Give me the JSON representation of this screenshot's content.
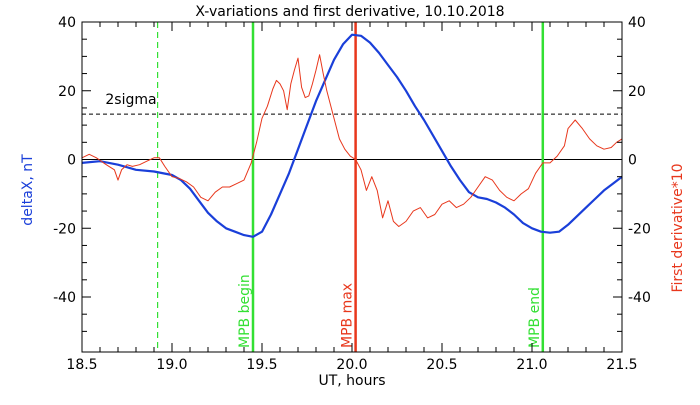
{
  "chart_data": {
    "type": "line",
    "title": "X-variations and first derivative, 10.10.2018",
    "xlabel": "UT, hours",
    "ylabel_left": "deltaX, nT",
    "ylabel_right": "First derivative*10",
    "xlim": [
      18.5,
      21.5
    ],
    "ylim": [
      -56,
      40
    ],
    "xticks": [
      18.5,
      19.0,
      19.5,
      20.0,
      20.5,
      21.0,
      21.5
    ],
    "xtick_labels": [
      "18.5",
      "19.0",
      "19.5",
      "20.0",
      "20.5",
      "21.0",
      "21.5"
    ],
    "yticks": [
      -40,
      -20,
      0,
      20,
      40
    ],
    "ytick_labels": [
      "-40",
      "-20",
      "0",
      "20",
      "40"
    ],
    "colors": {
      "deltaX": "#1a3fd9",
      "derivative": "#e8371c",
      "mpb_boundary": "#33e033",
      "mpb_max": "#e8371c",
      "axis": "#000000",
      "ref_line": "#000000"
    },
    "reference_lines": [
      {
        "label": "2sigma",
        "y": 13.2,
        "style": "dashed"
      },
      {
        "label": "",
        "y": 0,
        "style": "solid"
      }
    ],
    "vertical_lines": [
      {
        "x": 18.92,
        "label": "",
        "color": "#33e033",
        "style": "dashed"
      },
      {
        "x": 19.45,
        "label": "MPB begin",
        "color": "#33e033",
        "style": "solid"
      },
      {
        "x": 20.02,
        "label": "MPB max",
        "color": "#e8371c",
        "style": "solid"
      },
      {
        "x": 21.06,
        "label": "MPB end",
        "color": "#33e033",
        "style": "solid"
      }
    ],
    "series": [
      {
        "key": "deltaX",
        "x": [
          18.5,
          18.6,
          18.7,
          18.8,
          18.9,
          19.0,
          19.05,
          19.1,
          19.15,
          19.2,
          19.25,
          19.3,
          19.35,
          19.4,
          19.45,
          19.5,
          19.55,
          19.6,
          19.65,
          19.7,
          19.75,
          19.8,
          19.85,
          19.9,
          19.95,
          20.0,
          20.05,
          20.1,
          20.15,
          20.2,
          20.25,
          20.3,
          20.35,
          20.4,
          20.45,
          20.5,
          20.55,
          20.6,
          20.65,
          20.7,
          20.75,
          20.8,
          20.85,
          20.9,
          20.95,
          21.0,
          21.05,
          21.1,
          21.15,
          21.2,
          21.25,
          21.3,
          21.35,
          21.4,
          21.45,
          21.5
        ],
        "values": [
          -1.0,
          -0.5,
          -1.5,
          -3.0,
          -3.5,
          -4.5,
          -6.0,
          -8.5,
          -12.0,
          -15.5,
          -18.0,
          -20.0,
          -21.0,
          -22.0,
          -22.5,
          -21.0,
          -16.0,
          -10.0,
          -4.0,
          3.0,
          10.0,
          17.0,
          23.0,
          29.0,
          33.5,
          36.3,
          36.0,
          34.0,
          31.0,
          27.5,
          24.0,
          20.0,
          15.5,
          11.5,
          7.0,
          2.5,
          -2.0,
          -6.0,
          -9.5,
          -11.0,
          -11.5,
          -12.5,
          -14.0,
          -16.0,
          -18.5,
          -20.0,
          -21.0,
          -21.3,
          -21.0,
          -19.0,
          -16.5,
          -14.0,
          -11.5,
          -9.0,
          -7.0,
          -5.0
        ]
      },
      {
        "key": "derivative",
        "x": [
          18.5,
          18.54,
          18.58,
          18.62,
          18.65,
          18.68,
          18.7,
          18.72,
          18.75,
          18.78,
          18.82,
          18.86,
          18.9,
          18.93,
          18.96,
          19.0,
          19.04,
          19.08,
          19.12,
          19.16,
          19.2,
          19.24,
          19.28,
          19.32,
          19.36,
          19.4,
          19.44,
          19.47,
          19.5,
          19.53,
          19.56,
          19.58,
          19.6,
          19.62,
          19.64,
          19.66,
          19.68,
          19.7,
          19.72,
          19.74,
          19.76,
          19.78,
          19.8,
          19.82,
          19.84,
          19.86,
          19.88,
          19.9,
          19.93,
          19.96,
          19.99,
          20.02,
          20.05,
          20.08,
          20.11,
          20.14,
          20.17,
          20.2,
          20.23,
          20.26,
          20.3,
          20.34,
          20.38,
          20.42,
          20.46,
          20.5,
          20.54,
          20.58,
          20.62,
          20.66,
          20.7,
          20.74,
          20.78,
          20.82,
          20.86,
          20.9,
          20.94,
          20.98,
          21.02,
          21.06,
          21.1,
          21.14,
          21.18,
          21.2,
          21.24,
          21.28,
          21.32,
          21.36,
          21.4,
          21.44,
          21.47,
          21.5
        ],
        "values": [
          0.5,
          1.5,
          0.5,
          -1.0,
          -2.0,
          -3.0,
          -6.0,
          -3.0,
          -1.5,
          -2.0,
          -1.5,
          -0.5,
          0.5,
          0.5,
          -2.0,
          -5.0,
          -5.5,
          -6.5,
          -8.0,
          -11.0,
          -12.0,
          -9.5,
          -8.0,
          -8.0,
          -7.0,
          -6.0,
          -1.0,
          5.0,
          12.0,
          15.5,
          20.5,
          23.0,
          22.0,
          20.0,
          14.5,
          22.0,
          26.0,
          29.5,
          21.0,
          18.0,
          18.5,
          22.0,
          26.0,
          30.5,
          25.0,
          20.0,
          16.0,
          12.0,
          6.0,
          3.0,
          1.0,
          0.0,
          -3.0,
          -9.0,
          -5.0,
          -9.0,
          -17.0,
          -12.0,
          -18.0,
          -19.5,
          -18.0,
          -15.0,
          -14.0,
          -17.0,
          -16.0,
          -13.0,
          -12.0,
          -14.0,
          -13.0,
          -11.0,
          -8.0,
          -5.0,
          -6.0,
          -9.0,
          -11.0,
          -12.0,
          -10.0,
          -8.5,
          -4.0,
          -1.0,
          -1.0,
          1.0,
          4.0,
          9.0,
          11.5,
          9.0,
          6.0,
          4.0,
          3.0,
          3.5,
          5.0,
          6.0
        ]
      }
    ]
  }
}
